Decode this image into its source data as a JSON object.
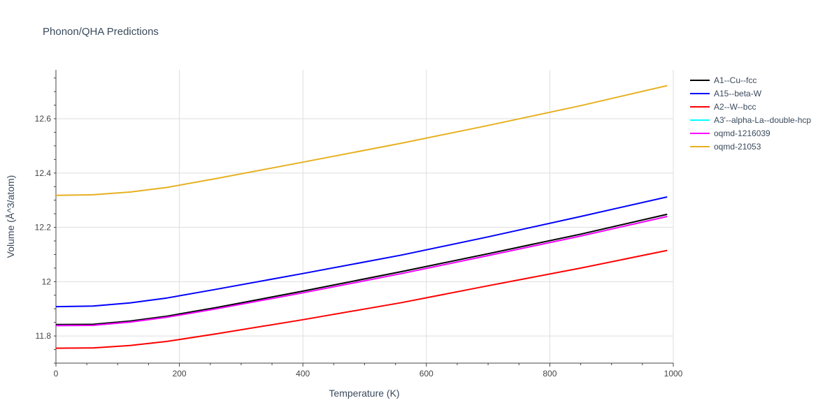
{
  "chart_data": {
    "type": "line",
    "title": "Phonon/QHA Predictions",
    "xlabel": "Temperature (K)",
    "ylabel": "Volume (Å^3/atom)",
    "xlim": [
      0,
      1000
    ],
    "ylim": [
      11.7,
      12.78
    ],
    "xticks": [
      0,
      200,
      400,
      600,
      800,
      1000
    ],
    "yticks": [
      11.8,
      12.0,
      12.2,
      12.4,
      12.6
    ],
    "ytick_labels": [
      "11.8",
      "12",
      "12.2",
      "12.4",
      "12.6"
    ],
    "grid": true,
    "legend_position": "top-right",
    "x": [
      0,
      60,
      120,
      180,
      260,
      400,
      560,
      700,
      850,
      990
    ],
    "series": [
      {
        "name": "A1--Cu--fcc",
        "color": "#000000",
        "values": [
          11.842,
          11.843,
          11.855,
          11.873,
          11.905,
          11.965,
          12.037,
          12.103,
          12.175,
          12.248
        ]
      },
      {
        "name": "A15--beta-W",
        "color": "#0000ff",
        "values": [
          11.908,
          11.91,
          11.922,
          11.94,
          11.972,
          12.03,
          12.098,
          12.165,
          12.24,
          12.312
        ]
      },
      {
        "name": "A2--W--bcc",
        "color": "#ff0000",
        "values": [
          11.755,
          11.756,
          11.765,
          11.78,
          11.808,
          11.86,
          11.923,
          11.985,
          12.05,
          12.115
        ]
      },
      {
        "name": "A3'--alpha-La--double-hcp",
        "color": "#00ffff",
        "values": [
          11.838,
          11.839,
          11.851,
          11.869,
          11.9,
          11.959,
          12.03,
          12.096,
          12.168,
          12.24
        ]
      },
      {
        "name": "oqmd-1216039",
        "color": "#ff00ff",
        "values": [
          11.838,
          11.839,
          11.851,
          11.869,
          11.9,
          11.959,
          12.03,
          12.096,
          12.168,
          12.24
        ]
      },
      {
        "name": "oqmd-21053",
        "color": "#e6b020",
        "values": [
          12.318,
          12.32,
          12.33,
          12.347,
          12.38,
          12.44,
          12.51,
          12.575,
          12.648,
          12.722
        ]
      }
    ]
  }
}
